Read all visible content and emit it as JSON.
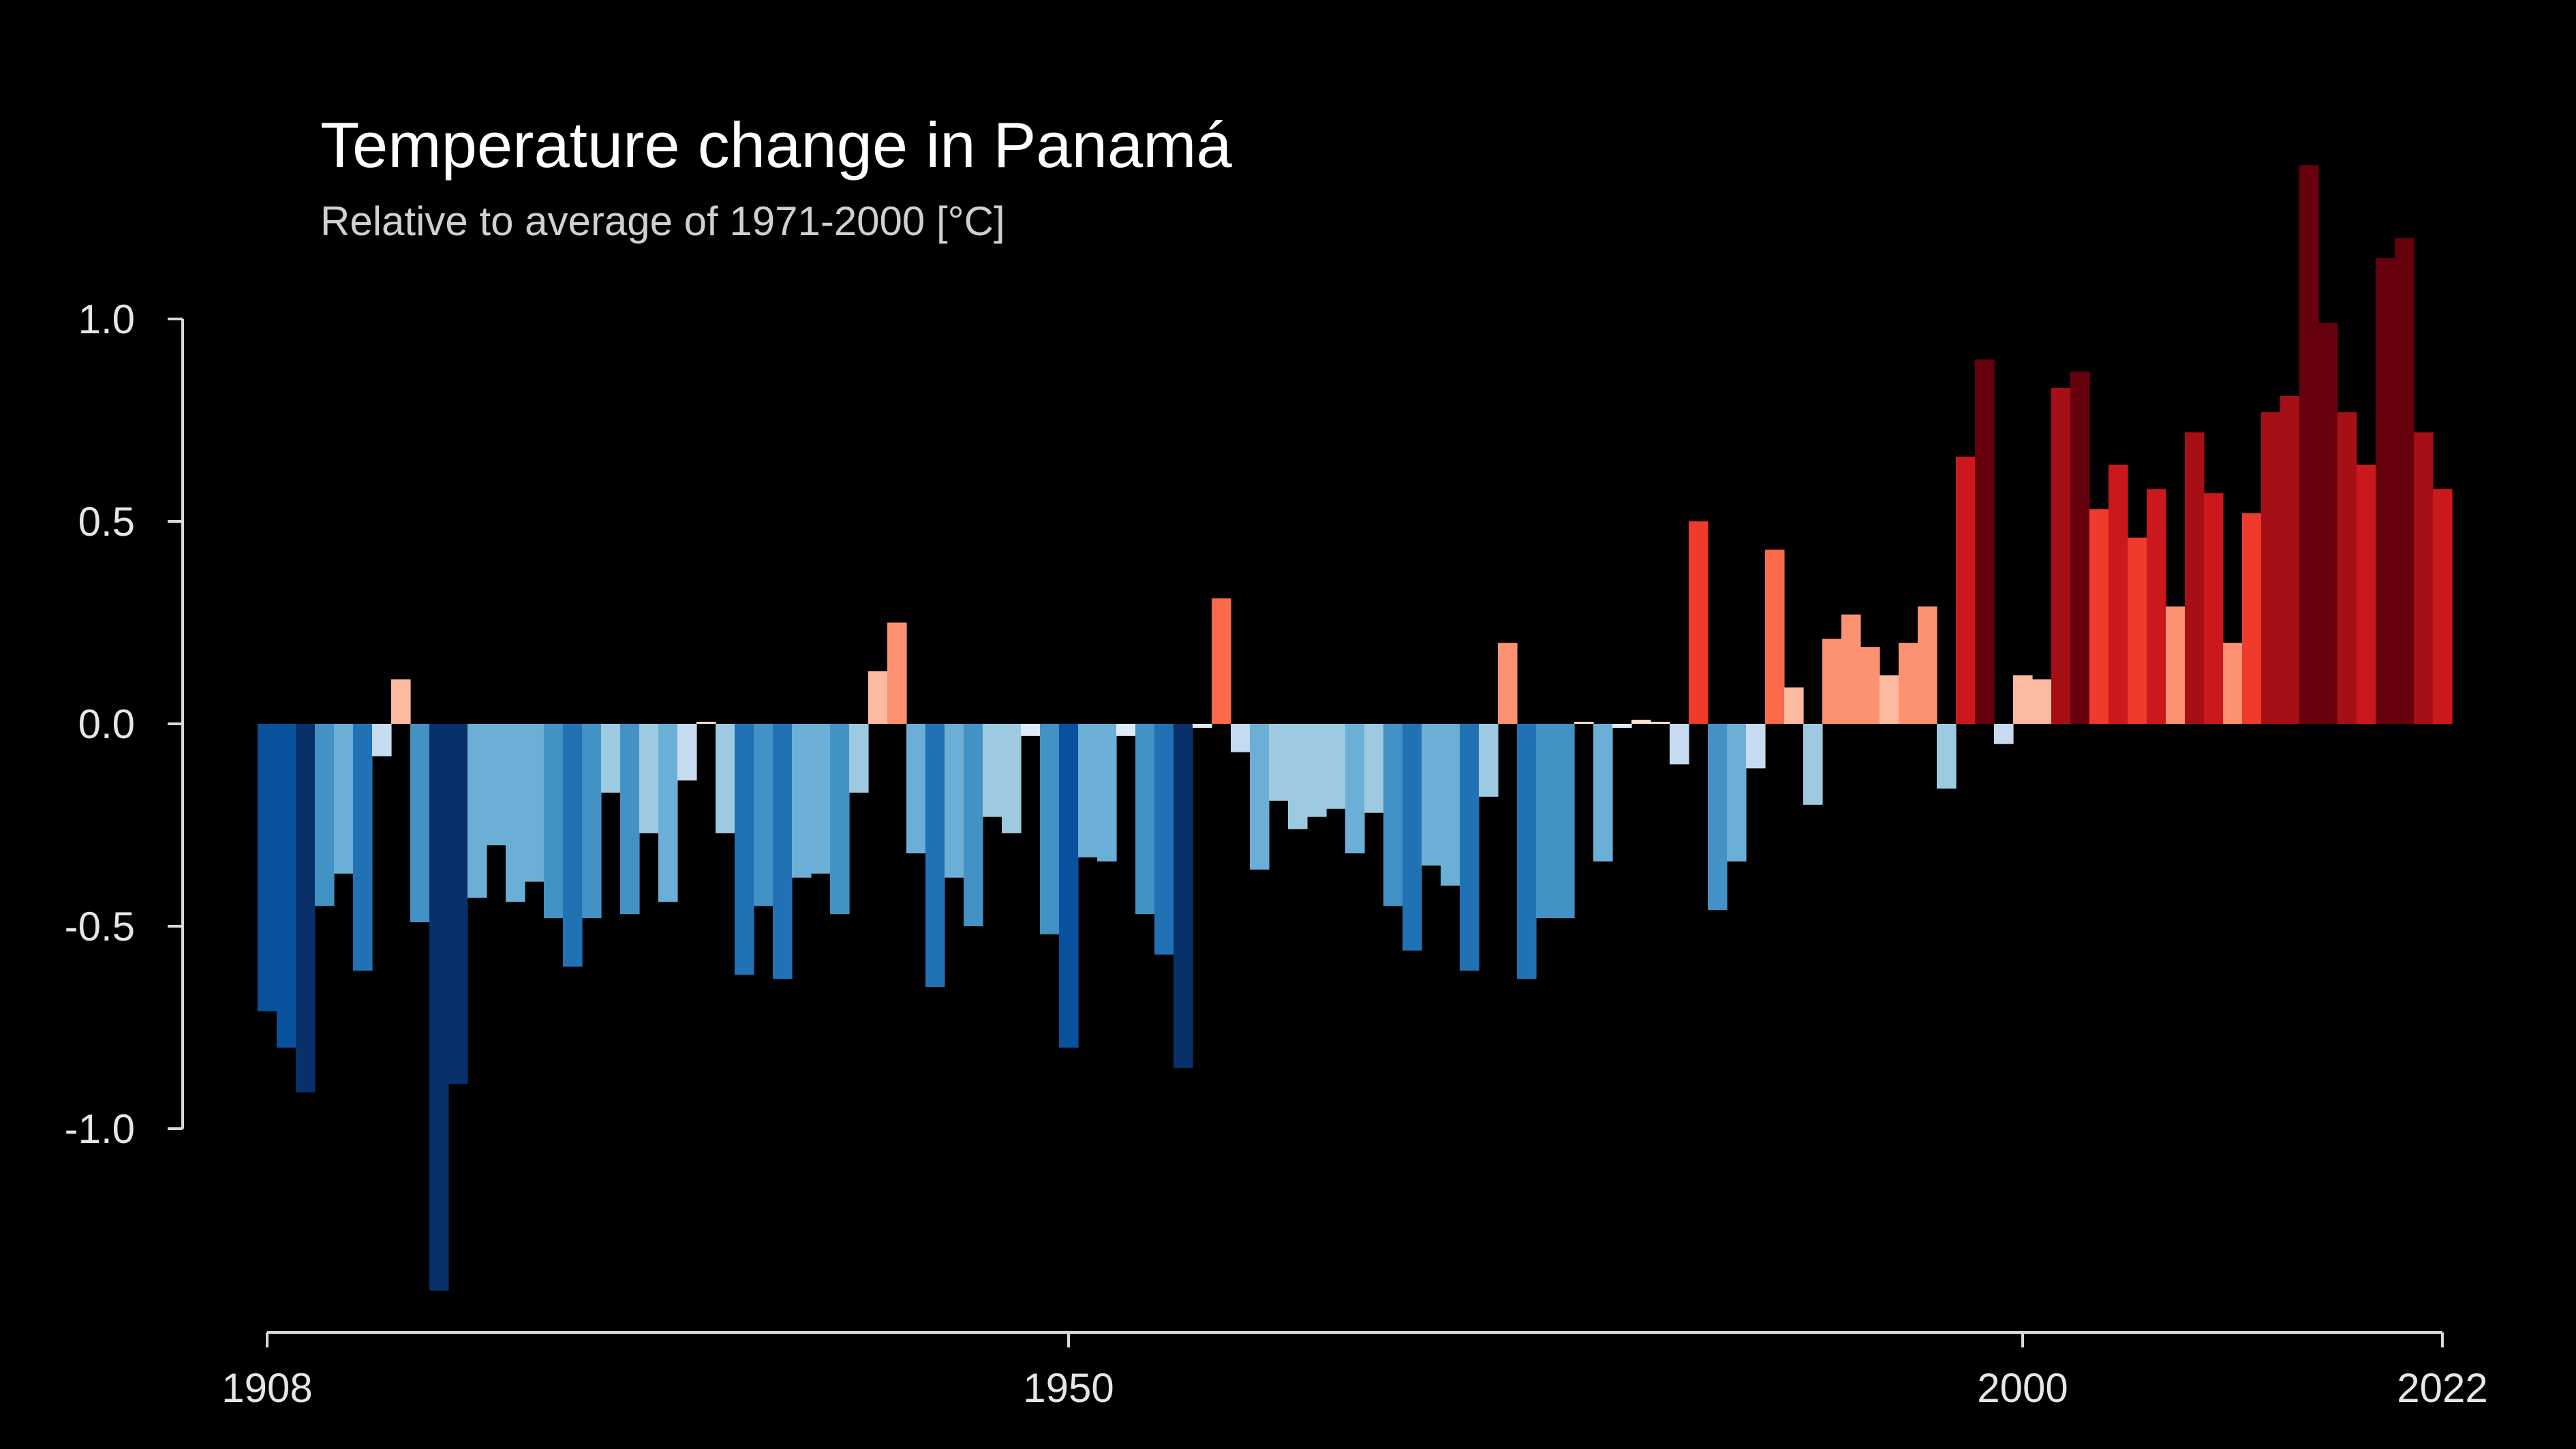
{
  "chart_data": {
    "type": "bar",
    "title": "Temperature change in Panamá",
    "subtitle": "Relative to average of 1971-2000  [°C]",
    "xlabel": "",
    "ylabel": "",
    "x_range": [
      1908,
      2022
    ],
    "ylim": [
      -1.45,
      1.45
    ],
    "y_ticks": [
      1.0,
      0.5,
      0.0,
      -0.5,
      -1.0
    ],
    "y_tick_labels": [
      "1.0",
      "0.5",
      "0.0",
      "-0.5",
      "-1.0"
    ],
    "x_ticks": [
      1908,
      1950,
      2000,
      2022
    ],
    "x_tick_labels": [
      "1908",
      "1950",
      "2000",
      "2022"
    ],
    "grid": false,
    "color_scale": {
      "negative": [
        "#deebf7",
        "#c6dbef",
        "#9ecae1",
        "#6baed6",
        "#4292c6",
        "#2171b5",
        "#08519c",
        "#08306b"
      ],
      "positive": [
        "#fee0d2",
        "#fcbba1",
        "#fc9272",
        "#fb6a4a",
        "#ef3b2c",
        "#cb181d",
        "#a50f15",
        "#67000d"
      ]
    },
    "years": [
      1908,
      1909,
      1910,
      1911,
      1912,
      1913,
      1914,
      1915,
      1916,
      1917,
      1918,
      1919,
      1920,
      1921,
      1922,
      1923,
      1924,
      1925,
      1926,
      1927,
      1928,
      1929,
      1930,
      1931,
      1932,
      1933,
      1934,
      1935,
      1936,
      1937,
      1938,
      1939,
      1940,
      1941,
      1942,
      1943,
      1944,
      1945,
      1946,
      1947,
      1948,
      1949,
      1950,
      1951,
      1952,
      1953,
      1954,
      1955,
      1956,
      1957,
      1958,
      1959,
      1960,
      1961,
      1962,
      1963,
      1964,
      1965,
      1966,
      1967,
      1968,
      1969,
      1970,
      1971,
      1972,
      1973,
      1974,
      1975,
      1976,
      1977,
      1978,
      1979,
      1980,
      1981,
      1982,
      1983,
      1984,
      1985,
      1986,
      1987,
      1988,
      1989,
      1990,
      1991,
      1992,
      1993,
      1994,
      1995,
      1996,
      1997,
      1998,
      1999,
      2000,
      2001,
      2002,
      2003,
      2004,
      2005,
      2006,
      2007,
      2008,
      2009,
      2010,
      2011,
      2012,
      2013,
      2014,
      2015,
      2016,
      2017,
      2018,
      2019,
      2020,
      2021,
      2022
    ],
    "values": [
      -0.71,
      -0.8,
      -0.91,
      -0.45,
      -0.37,
      -0.61,
      -0.08,
      0.11,
      -0.49,
      -1.4,
      -0.89,
      -0.43,
      -0.3,
      -0.44,
      -0.39,
      -0.48,
      -0.6,
      -0.48,
      -0.17,
      -0.47,
      -0.27,
      -0.44,
      -0.14,
      0.0,
      -0.27,
      -0.62,
      -0.45,
      -0.63,
      -0.38,
      -0.37,
      -0.47,
      -0.17,
      0.13,
      0.25,
      -0.32,
      -0.65,
      -0.38,
      -0.5,
      -0.23,
      -0.27,
      -0.03,
      -0.52,
      -0.8,
      -0.33,
      -0.34,
      -0.03,
      -0.47,
      -0.57,
      -0.85,
      -0.01,
      0.31,
      -0.07,
      -0.36,
      -0.19,
      -0.26,
      -0.23,
      -0.21,
      -0.32,
      -0.22,
      -0.45,
      -0.56,
      -0.35,
      -0.4,
      -0.61,
      -0.18,
      0.2,
      -0.63,
      -0.48,
      -0.48,
      0.0,
      -0.34,
      -0.01,
      0.01,
      0.0,
      -0.1,
      0.5,
      -0.46,
      -0.34,
      -0.11,
      0.43,
      0.09,
      -0.2,
      0.21,
      0.27,
      0.19,
      0.12,
      0.2,
      0.29,
      -0.16,
      0.66,
      0.9,
      -0.05,
      0.12,
      0.11,
      0.83,
      0.87,
      0.53,
      0.64,
      0.46,
      0.58,
      0.29,
      0.72,
      0.57,
      0.2,
      0.52,
      0.77,
      0.81,
      1.38,
      0.99,
      0.77,
      0.64,
      1.15,
      1.2,
      0.72,
      0.58
    ]
  }
}
